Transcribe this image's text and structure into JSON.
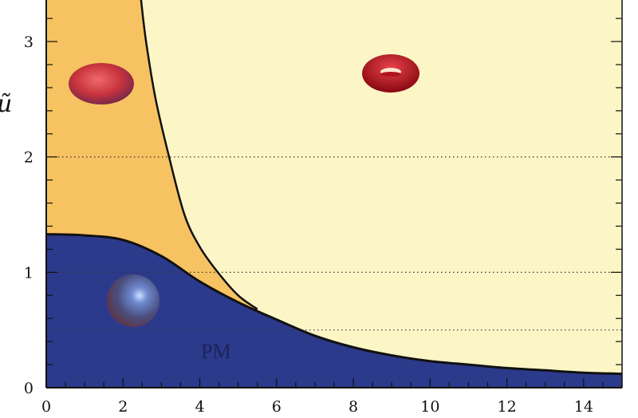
{
  "chart_data": {
    "type": "area",
    "title": "",
    "xlabel": "",
    "ylabel": "ũ",
    "xlim": [
      0,
      15
    ],
    "ylim": [
      0,
      3.36
    ],
    "xticks": [
      0,
      2,
      4,
      6,
      8,
      10,
      12,
      14
    ],
    "yticks": [
      0,
      1,
      2,
      3
    ],
    "grid": "dotted horizontal lines at y = 0.5, 1, 2",
    "reference_lines_y": [
      0.5,
      1,
      2
    ],
    "boundaries": [
      {
        "role": "lower boundary (top of PM region)",
        "x": [
          0,
          1,
          2,
          3,
          4,
          5,
          6,
          7,
          8,
          9,
          10,
          11,
          12,
          13,
          14,
          15
        ],
        "y": [
          1.33,
          1.32,
          1.28,
          1.14,
          0.92,
          0.74,
          0.59,
          0.45,
          0.35,
          0.28,
          0.23,
          0.2,
          0.17,
          0.15,
          0.13,
          0.12
        ]
      },
      {
        "role": "upper boundary (separating ellipsoid and torus phases)",
        "x": [
          2.47,
          2.6,
          2.85,
          3.2,
          3.6,
          4.0,
          4.47,
          5.0,
          5.5
        ],
        "y": [
          3.36,
          3.0,
          2.5,
          2.0,
          1.5,
          1.22,
          1.0,
          0.8,
          0.68
        ]
      }
    ],
    "regions": [
      {
        "label": "PM",
        "icon": "sphere",
        "color": "#2c3a8c"
      },
      {
        "label": "",
        "icon": "red-ellipsoid",
        "color": "#f7c261"
      },
      {
        "label": "",
        "icon": "red-torus",
        "color": "#fcf5c6"
      }
    ]
  },
  "colors": {
    "pm_region": "#2c3a8c",
    "ellipsoid_region": "#f7c261",
    "torus_region": "#fcf5c6",
    "boundary": "#111111",
    "ellipsoid": "#c8333d",
    "torus": "#c3161d",
    "sphere": "#6b7aa8"
  }
}
